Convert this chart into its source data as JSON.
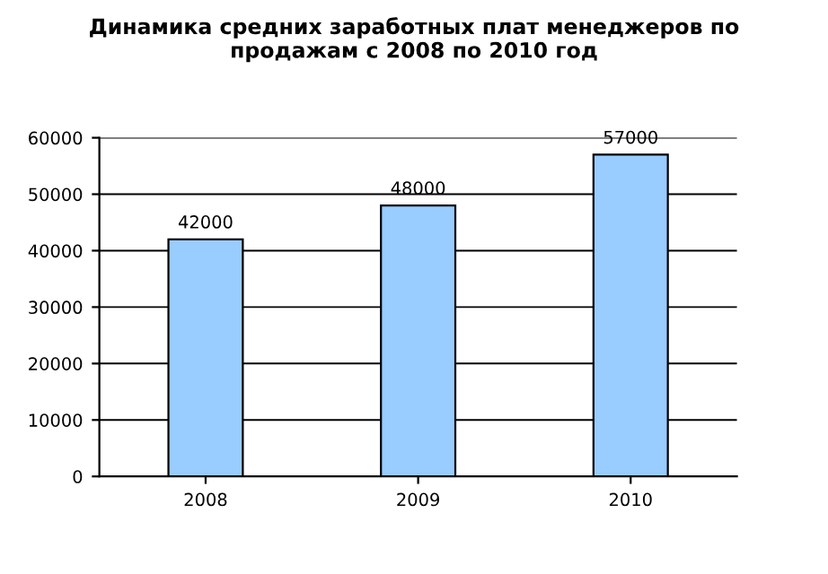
{
  "chart_data": {
    "type": "bar",
    "title": "Динамика средних заработных плат менеджеров по\nпродажам с 2008 по 2010 год",
    "categories": [
      "2008",
      "2009",
      "2010"
    ],
    "values": [
      42000,
      48000,
      57000
    ],
    "color": "#99ccff",
    "ylim": [
      0,
      60000
    ],
    "yticks": [
      0,
      10000,
      20000,
      30000,
      40000,
      50000,
      60000
    ],
    "grid": "y",
    "data_labels": true
  }
}
